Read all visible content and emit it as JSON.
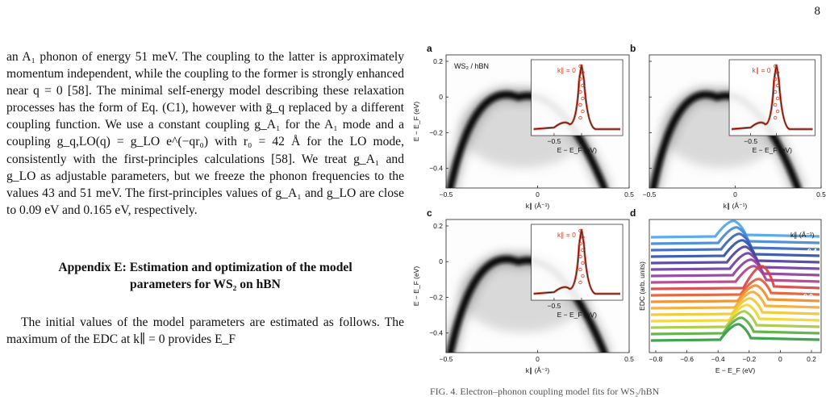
{
  "page_number": "8",
  "body": {
    "para1": "an A₁ phonon of energy 51 meV. The coupling to the latter is approximately momentum independent, while the coupling to the former is strongly enhanced near q = 0 [58]. The minimal self-energy model describing these relaxation processes has the form of Eq. (C1), however with ḡ_q replaced by a different coupling function. We use a constant coupling g_A₁ for the A₁ mode and a coupling g_q,LO(q) = g_LO e^(−qr₀) with r₀ = 42 Å for the LO mode, consistently with the first-principles calculations [58]. We treat g_A₁ and g_LO as adjustable parameters, but we freeze the phonon frequencies to the values 43 and 51 meV. The first-principles values of g_A₁ and g_LO are close to 0.09 eV and 0.165 eV, respectively.",
    "appendix_heading_line1": "Appendix E: Estimation and optimization of the model",
    "appendix_heading_line2": "parameters for WS₂ on hBN",
    "para2": "The initial values of the model parameters are estimated as follows. The maximum of the EDC at k∥ = 0 provides E_F"
  },
  "figure": {
    "panel_letters": [
      "a",
      "b",
      "c",
      "d"
    ],
    "sample_label": "WS₂ / hBN",
    "inset_label": "k∥ = 0",
    "map_y_label": "E − E_F  (eV)",
    "map_x_label": "k∥  (Å⁻¹)",
    "map_x_ticks": [
      "−0.5",
      "0",
      "0.5"
    ],
    "map_y_ticks": [
      "0.2",
      "0",
      "−0.2",
      "−0.4"
    ],
    "inset_x_label": "E − E_F  (eV)",
    "inset_x_ticks": [
      "−0.5",
      "0"
    ],
    "edc_y_label": "EDC (arb. units)",
    "edc_x_label": "E − E_F  (eV)",
    "edc_x_ticks": [
      "−0.8",
      "−0.6",
      "−0.4",
      "−0.2",
      "0",
      "0.2"
    ],
    "edc_legend_title": "k∥ (Å⁻¹)",
    "edc_curve_labels": [
      "−0.4",
      "0.0",
      "+0.4"
    ],
    "colors": {
      "accent_red": "#d8402a",
      "band": "#111111",
      "edc_blue": "#3a9ad9",
      "edc_green": "#2e9a3c"
    }
  },
  "caption_fragment": "FIG. 4. Electron–phonon coupling model fits for WS₂/hBN"
}
